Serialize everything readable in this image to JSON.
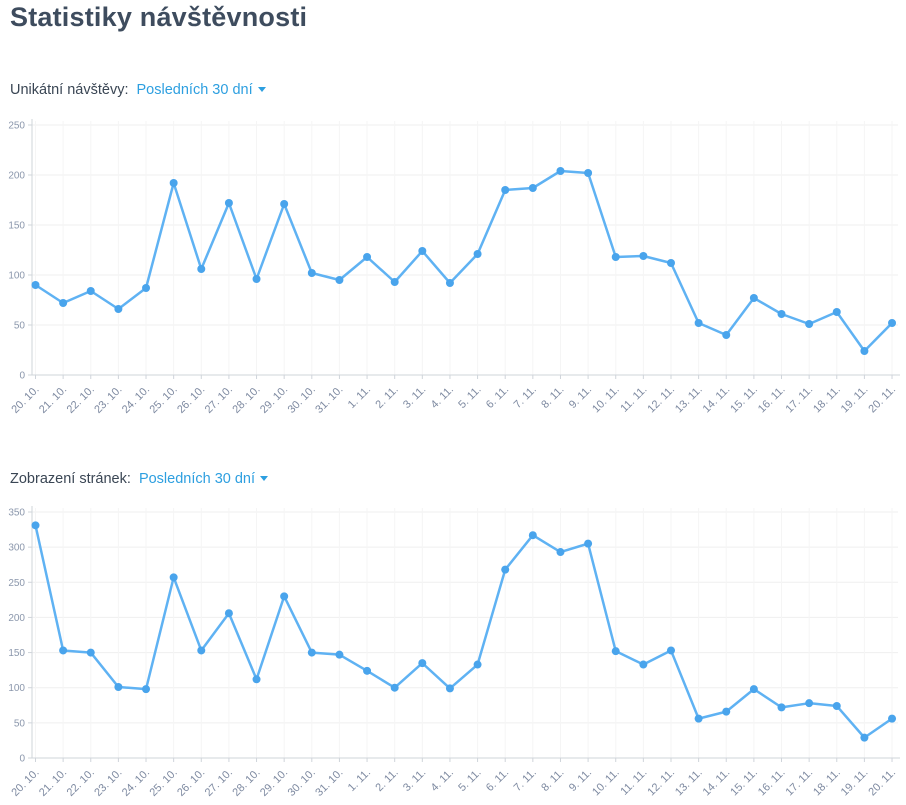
{
  "page": {
    "title": "Statistiky návštěvnosti"
  },
  "chart_data": [
    {
      "type": "line",
      "title": "Unikátní návštěvy:",
      "period_selector_label": "Posledních 30 dní",
      "legend": "none",
      "grid": true,
      "ylim": [
        0,
        250
      ],
      "ytick_step": 50,
      "colors": {
        "line": "#5fb2f3",
        "point": "#49a4ec"
      },
      "categories": [
        "20. 10.",
        "21. 10.",
        "22. 10.",
        "23. 10.",
        "24. 10.",
        "25. 10.",
        "26. 10.",
        "27. 10.",
        "28. 10.",
        "29. 10.",
        "30. 10.",
        "31. 10.",
        "1. 11.",
        "2. 11.",
        "3. 11.",
        "4. 11.",
        "5. 11.",
        "6. 11.",
        "7. 11.",
        "8. 11.",
        "9. 11.",
        "10. 11.",
        "11. 11.",
        "12. 11.",
        "13. 11.",
        "14. 11.",
        "15. 11.",
        "16. 11.",
        "17. 11.",
        "18. 11.",
        "19. 11.",
        "20. 11."
      ],
      "values": [
        90,
        72,
        84,
        66,
        87,
        192,
        106,
        172,
        96,
        171,
        102,
        95,
        118,
        93,
        124,
        92,
        121,
        185,
        187,
        204,
        202,
        118,
        119,
        112,
        52,
        40,
        77,
        61,
        51,
        63,
        24,
        52
      ]
    },
    {
      "type": "line",
      "title": "Zobrazení stránek:",
      "period_selector_label": "Posledních 30 dní",
      "legend": "none",
      "grid": true,
      "ylim": [
        0,
        350
      ],
      "ytick_step": 50,
      "colors": {
        "line": "#5fb2f3",
        "point": "#49a4ec"
      },
      "categories": [
        "20. 10.",
        "21. 10.",
        "22. 10.",
        "23. 10.",
        "24. 10.",
        "25. 10.",
        "26. 10.",
        "27. 10.",
        "28. 10.",
        "29. 10.",
        "30. 10.",
        "31. 10.",
        "1. 11.",
        "2. 11.",
        "3. 11.",
        "4. 11.",
        "5. 11.",
        "6. 11.",
        "7. 11.",
        "8. 11.",
        "9. 11.",
        "10. 11.",
        "11. 11.",
        "12. 11.",
        "13. 11.",
        "14. 11.",
        "15. 11.",
        "16. 11.",
        "17. 11.",
        "18. 11.",
        "19. 11.",
        "20. 11."
      ],
      "values": [
        331,
        153,
        150,
        101,
        98,
        257,
        153,
        206,
        112,
        230,
        150,
        147,
        124,
        100,
        135,
        99,
        133,
        268,
        317,
        293,
        305,
        152,
        133,
        153,
        56,
        66,
        98,
        72,
        78,
        74,
        29,
        56
      ]
    }
  ],
  "axis_colors": {
    "tick_label": "#8b97ac",
    "x_label": "#7e8aa1",
    "axis_line": "#cfd4da",
    "grid_h": "#efefef",
    "grid_v": "#f5f5f5"
  }
}
